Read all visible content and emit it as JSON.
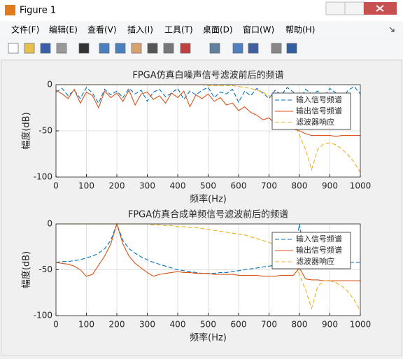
{
  "window": {
    "title": "Figure 1",
    "menu": [
      "文件(F)",
      "编辑(E)",
      "查看(V)",
      "插入(I)",
      "工具(T)",
      "桌面(D)",
      "窗口(W)",
      "帮助(H)"
    ]
  },
  "chart_data": [
    {
      "type": "line",
      "title": "FPGA仿真白噪声信号滤波前后的频谱",
      "xlabel": "频率(Hz)",
      "ylabel": "幅度(dB)",
      "xlim": [
        0,
        1000
      ],
      "ylim": [
        -100,
        0
      ],
      "xticks": [
        0,
        100,
        200,
        300,
        400,
        500,
        600,
        700,
        800,
        900,
        1000
      ],
      "yticks": [
        -100,
        -50,
        0
      ],
      "grid": true,
      "legend": "northeast",
      "x": [
        0,
        20,
        40,
        60,
        80,
        100,
        120,
        140,
        160,
        180,
        200,
        220,
        240,
        260,
        280,
        300,
        320,
        340,
        360,
        380,
        400,
        420,
        440,
        460,
        480,
        500,
        520,
        540,
        560,
        580,
        600,
        620,
        640,
        660,
        680,
        700,
        720,
        740,
        760,
        780,
        800,
        820,
        840,
        860,
        880,
        900,
        920,
        940,
        960,
        980,
        1000
      ],
      "series": [
        {
          "name": "输入信号频谱",
          "color": "#0072bd",
          "linestyle": "dashed",
          "values": [
            -8,
            -4,
            -12,
            -6,
            -15,
            -3,
            -9,
            -20,
            -5,
            -11,
            -7,
            -14,
            -4,
            -10,
            -6,
            -18,
            -8,
            -5,
            -13,
            -9,
            -4,
            -16,
            -7,
            -11,
            -6,
            -3,
            -14,
            -8,
            -10,
            -5,
            -19,
            -7,
            -12,
            -4,
            -9,
            -15,
            -6,
            -11,
            -3,
            -8,
            -17,
            -5,
            -10,
            -7,
            -13,
            -4,
            -9,
            -16,
            -6,
            -2,
            -10
          ]
        },
        {
          "name": "输出信号频谱",
          "color": "#d95319",
          "linestyle": "solid",
          "values": [
            -6,
            -10,
            -15,
            -5,
            -20,
            -8,
            -12,
            -25,
            -7,
            -14,
            -9,
            -18,
            -6,
            -22,
            -10,
            -8,
            -16,
            -12,
            -20,
            -9,
            -14,
            -7,
            -24,
            -11,
            -15,
            -10,
            -18,
            -14,
            -22,
            -20,
            -28,
            -24,
            -30,
            -33,
            -38,
            -36,
            -42,
            -45,
            -44,
            -48,
            -50,
            -53,
            -55,
            -55,
            -55,
            -55,
            -56,
            -55,
            -55,
            -55,
            -55
          ]
        },
        {
          "name": "滤波器响应",
          "color": "#edb120",
          "linestyle": "dashed",
          "values": [
            0,
            0,
            0,
            0,
            0,
            0,
            0,
            0,
            0,
            0,
            0,
            0,
            0,
            0,
            0,
            0,
            0,
            0,
            0,
            0,
            0,
            0,
            0,
            0,
            0,
            -1,
            -1,
            -1,
            -1,
            -1,
            -2,
            -3,
            -4,
            -6,
            -8,
            -12,
            -16,
            -22,
            -30,
            -40,
            -55,
            -70,
            -92,
            -70,
            -64,
            -63,
            -65,
            -70,
            -76,
            -84,
            -95
          ]
        }
      ]
    },
    {
      "type": "line",
      "title": "FPGA仿真合成单频信号滤波前后的频谱",
      "xlabel": "频率(Hz)",
      "ylabel": "幅度(dB)",
      "xlim": [
        0,
        1000
      ],
      "ylim": [
        -100,
        0
      ],
      "xticks": [
        0,
        100,
        200,
        300,
        400,
        500,
        600,
        700,
        800,
        900,
        1000
      ],
      "yticks": [
        -100,
        -50,
        0
      ],
      "grid": true,
      "legend": "northeast",
      "x": [
        0,
        20,
        40,
        60,
        80,
        100,
        120,
        140,
        160,
        180,
        200,
        220,
        240,
        260,
        280,
        300,
        320,
        340,
        360,
        380,
        400,
        420,
        440,
        460,
        480,
        500,
        520,
        540,
        560,
        580,
        600,
        620,
        640,
        660,
        680,
        700,
        720,
        740,
        760,
        780,
        800,
        820,
        840,
        860,
        880,
        900,
        920,
        940,
        960,
        980,
        1000
      ],
      "series": [
        {
          "name": "输入信号频谱",
          "color": "#0072bd",
          "linestyle": "dashed",
          "values": [
            -42,
            -41,
            -41,
            -40,
            -39,
            -37,
            -35,
            -32,
            -27,
            -18,
            0,
            -18,
            -27,
            -32,
            -36,
            -39,
            -42,
            -44,
            -46,
            -48,
            -50,
            -51,
            -52,
            -53,
            -54,
            -54,
            -54,
            -53,
            -53,
            -52,
            -51,
            -50,
            -49,
            -48,
            -47,
            -46,
            -45,
            -44,
            -43,
            -40,
            0,
            -40,
            -41,
            -41,
            -42,
            -42,
            -42,
            -42,
            -42,
            -42,
            -42
          ]
        },
        {
          "name": "输出信号频谱",
          "color": "#d95319",
          "linestyle": "solid",
          "values": [
            -42,
            -43,
            -44,
            -46,
            -50,
            -57,
            -55,
            -45,
            -35,
            -22,
            0,
            -22,
            -35,
            -43,
            -48,
            -53,
            -57,
            -55,
            -54,
            -53,
            -52,
            -53,
            -53,
            -54,
            -54,
            -54,
            -55,
            -55,
            -55,
            -55,
            -56,
            -56,
            -56,
            -56,
            -57,
            -57,
            -57,
            -56,
            -56,
            -56,
            -48,
            -60,
            -61,
            -61,
            -62,
            -62,
            -62,
            -62,
            -62,
            -62,
            -62
          ]
        },
        {
          "name": "滤波器响应",
          "color": "#edb120",
          "linestyle": "dashed",
          "values": [
            0,
            0,
            0,
            0,
            0,
            0,
            0,
            0,
            0,
            0,
            0,
            0,
            0,
            0,
            0,
            0,
            -1,
            -1,
            -2,
            -2,
            -3,
            -3,
            -4,
            -4,
            -5,
            -6,
            -7,
            -8,
            -9,
            -10,
            -11,
            -12,
            -14,
            -16,
            -18,
            -20,
            -23,
            -27,
            -32,
            -40,
            -55,
            -72,
            -92,
            -68,
            -62,
            -62,
            -64,
            -68,
            -74,
            -83,
            -95
          ]
        }
      ]
    }
  ]
}
